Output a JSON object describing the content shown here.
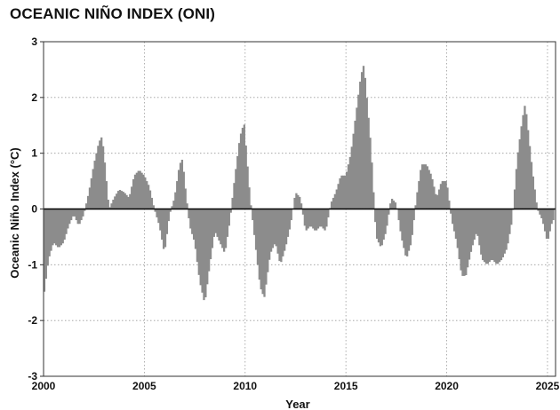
{
  "chart_data": {
    "type": "bar",
    "title": "OCEANIC NIÑO INDEX (ONI)",
    "xlabel": "Year",
    "ylabel": "Oceanic Niño Index (°C)",
    "xlim": [
      2000,
      2025.4
    ],
    "ylim": [
      -3,
      3
    ],
    "x_ticks": [
      2000,
      2005,
      2010,
      2015,
      2020,
      2025
    ],
    "y_ticks": [
      -3,
      -2,
      -1,
      0,
      1,
      2,
      3
    ],
    "grid": true,
    "bar_color": "#8c8c8c",
    "series": [
      {
        "x": [
          2000.0,
          2000.25,
          2000.5,
          2000.75,
          2001.0,
          2001.25,
          2001.5,
          2001.75,
          2002.0,
          2002.25,
          2002.5,
          2002.75,
          2002.9,
          2003.0,
          2003.25,
          2003.5,
          2003.75,
          2004.0,
          2004.25,
          2004.5,
          2004.75,
          2005.0,
          2005.25,
          2005.5,
          2005.75,
          2006.0,
          2006.25,
          2006.5,
          2006.75,
          2006.9,
          2007.0,
          2007.25,
          2007.5,
          2007.75,
          2008.0,
          2008.25,
          2008.5,
          2008.75,
          2009.0,
          2009.25,
          2009.5,
          2009.75,
          2009.95,
          2010.25,
          2010.5,
          2010.75,
          2010.95,
          2011.25,
          2011.5,
          2011.75,
          2012.0,
          2012.25,
          2012.5,
          2012.75,
          2013.0,
          2013.25,
          2013.5,
          2013.75,
          2014.0,
          2014.25,
          2014.5,
          2014.75,
          2015.0,
          2015.25,
          2015.5,
          2015.75,
          2015.9,
          2016.25,
          2016.5,
          2016.75,
          2017.0,
          2017.25,
          2017.5,
          2017.75,
          2018.0,
          2018.25,
          2018.5,
          2018.75,
          2019.0,
          2019.25,
          2019.5,
          2019.75,
          2020.0,
          2020.25,
          2020.5,
          2020.75,
          2020.95,
          2021.25,
          2021.5,
          2021.75,
          2022.0,
          2022.25,
          2022.5,
          2022.75,
          2023.0,
          2023.25,
          2023.5,
          2023.75,
          2023.9,
          2024.25,
          2024.5,
          2024.75,
          2025.0,
          2025.25
        ],
        "values": [
          -1.6,
          -0.9,
          -0.6,
          -0.7,
          -0.6,
          -0.3,
          -0.1,
          -0.3,
          -0.1,
          0.3,
          0.8,
          1.2,
          1.3,
          1.0,
          0.0,
          0.2,
          0.35,
          0.3,
          0.2,
          0.6,
          0.7,
          0.6,
          0.4,
          0.0,
          -0.3,
          -0.8,
          -0.1,
          0.2,
          0.8,
          0.9,
          0.5,
          -0.3,
          -0.6,
          -1.3,
          -1.7,
          -1.0,
          -0.4,
          -0.6,
          -0.8,
          -0.2,
          0.6,
          1.3,
          1.55,
          0.2,
          -0.6,
          -1.4,
          -1.6,
          -0.8,
          -0.6,
          -1.0,
          -0.7,
          -0.3,
          0.3,
          0.2,
          -0.4,
          -0.3,
          -0.4,
          -0.3,
          -0.4,
          0.1,
          0.3,
          0.6,
          0.6,
          1.0,
          1.7,
          2.4,
          2.6,
          1.1,
          -0.5,
          -0.7,
          -0.4,
          0.2,
          0.1,
          -0.5,
          -0.9,
          -0.6,
          0.2,
          0.8,
          0.8,
          0.6,
          0.2,
          0.5,
          0.5,
          -0.2,
          -0.6,
          -1.2,
          -1.2,
          -0.7,
          -0.4,
          -0.9,
          -1.0,
          -0.9,
          -1.0,
          -0.9,
          -0.7,
          -0.2,
          0.9,
          1.6,
          1.9,
          0.7,
          0.0,
          -0.2,
          -0.6,
          -0.2
        ]
      }
    ]
  }
}
